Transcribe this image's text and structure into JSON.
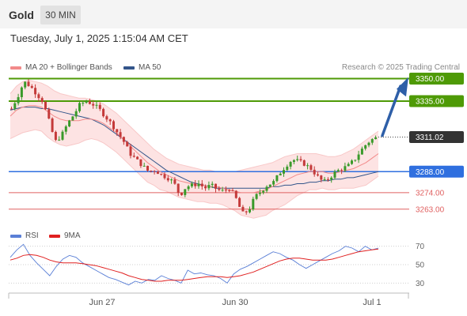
{
  "header": {
    "instrument": "Gold",
    "timeframe": "30 MIN",
    "datetime": "Tuesday, July 1, 2025 1:15:04 AM CET"
  },
  "legend": {
    "ma20": "MA 20 + Bollinger Bands",
    "ma50": "MA 50",
    "credit": "Research © 2025 Trading Central"
  },
  "rsi_legend": {
    "rsi": "RSI",
    "ma": "9MA"
  },
  "colors": {
    "ma20": "#f28a8a",
    "ma50": "#33558a",
    "resistance": "#4e9a06",
    "pivot": "#2f6fdf",
    "support": "#e06060",
    "bullish": "#3a9a2a",
    "bearish": "#c43a3a",
    "last": "#333333"
  },
  "chart_data": [
    {
      "type": "candlestick",
      "instrument": "Gold",
      "timeframe": "30 MIN",
      "x_ticks": [
        "Jun 27",
        "Jun 30",
        "Jul 1"
      ],
      "ylim": [
        3255,
        3355
      ],
      "levels": [
        {
          "value": "3350.00",
          "kind": "resistance"
        },
        {
          "value": "3335.00",
          "kind": "resistance"
        },
        {
          "value": "3311.02",
          "kind": "last"
        },
        {
          "value": "3288.00",
          "kind": "pivot"
        },
        {
          "value": "3274.00",
          "kind": "support"
        },
        {
          "value": "3263.00",
          "kind": "support"
        }
      ],
      "close_path": [
        3330,
        3338,
        3348,
        3345,
        3340,
        3335,
        3322,
        3308,
        3312,
        3320,
        3326,
        3333,
        3335,
        3333,
        3330,
        3325,
        3320,
        3314,
        3308,
        3300,
        3296,
        3292,
        3288,
        3289,
        3286,
        3284,
        3281,
        3272,
        3278,
        3279,
        3280,
        3277,
        3279,
        3276,
        3275,
        3277,
        3270,
        3260,
        3262,
        3271,
        3275,
        3279,
        3281,
        3287,
        3292,
        3296,
        3295,
        3293,
        3290,
        3285,
        3281,
        3284,
        3288,
        3290,
        3292,
        3296,
        3302,
        3307,
        3310,
        3311
      ],
      "ma20": [
        3325,
        3329,
        3331,
        3332,
        3332,
        3331,
        3328,
        3325,
        3323,
        3322,
        3322,
        3322,
        3323,
        3323,
        3322,
        3320,
        3317,
        3314,
        3310,
        3306,
        3302,
        3298,
        3294,
        3291,
        3288,
        3286,
        3284,
        3282,
        3281,
        3280,
        3279,
        3279,
        3278,
        3278,
        3277,
        3276,
        3275,
        3274,
        3274,
        3274,
        3275,
        3276,
        3278,
        3280,
        3282,
        3284,
        3286,
        3287,
        3288,
        3288,
        3288,
        3287,
        3287,
        3288,
        3289,
        3290,
        3292,
        3294,
        3297,
        3300
      ],
      "ma50": [
        3329,
        3330,
        3331,
        3331,
        3331,
        3330,
        3330,
        3329,
        3328,
        3327,
        3326,
        3325,
        3324,
        3323,
        3321,
        3319,
        3316,
        3313,
        3310,
        3307,
        3304,
        3301,
        3298,
        3295,
        3292,
        3289,
        3287,
        3285,
        3283,
        3281,
        3280,
        3279,
        3278,
        3277,
        3277,
        3277,
        3277,
        3277,
        3277,
        3277,
        3277,
        3277,
        3278,
        3278,
        3279,
        3279,
        3280,
        3280,
        3281,
        3281,
        3282,
        3282,
        3283,
        3283,
        3284,
        3284,
        3285,
        3286,
        3287,
        3288
      ],
      "bb_upper": [
        3340,
        3345,
        3348,
        3349,
        3348,
        3347,
        3345,
        3342,
        3340,
        3339,
        3338,
        3337,
        3337,
        3336,
        3335,
        3333,
        3330,
        3327,
        3323,
        3319,
        3315,
        3311,
        3307,
        3303,
        3300,
        3297,
        3295,
        3293,
        3292,
        3291,
        3290,
        3289,
        3289,
        3288,
        3288,
        3288,
        3288,
        3289,
        3290,
        3291,
        3292,
        3293,
        3294,
        3296,
        3298,
        3299,
        3300,
        3300,
        3300,
        3300,
        3299,
        3298,
        3298,
        3299,
        3301,
        3303,
        3306,
        3309,
        3312,
        3315
      ],
      "bb_lower": [
        3310,
        3312,
        3314,
        3315,
        3316,
        3315,
        3311,
        3308,
        3306,
        3305,
        3306,
        3307,
        3309,
        3310,
        3309,
        3307,
        3304,
        3301,
        3297,
        3293,
        3289,
        3285,
        3281,
        3279,
        3276,
        3275,
        3273,
        3271,
        3270,
        3269,
        3268,
        3268,
        3267,
        3267,
        3266,
        3264,
        3262,
        3259,
        3258,
        3257,
        3258,
        3259,
        3262,
        3264,
        3266,
        3269,
        3272,
        3274,
        3276,
        3276,
        3277,
        3276,
        3276,
        3277,
        3277,
        3277,
        3278,
        3279,
        3282,
        3285
      ]
    },
    {
      "type": "line",
      "name": "RSI",
      "y_ticks": [
        70,
        50,
        30
      ],
      "ylim": [
        20,
        80
      ],
      "rsi": [
        58,
        66,
        72,
        60,
        52,
        45,
        38,
        48,
        56,
        60,
        58,
        52,
        48,
        44,
        40,
        36,
        34,
        31,
        28,
        32,
        30,
        34,
        33,
        38,
        35,
        33,
        30,
        44,
        40,
        41,
        39,
        38,
        35,
        30,
        40,
        45,
        48,
        52,
        56,
        60,
        64,
        62,
        58,
        55,
        50,
        46,
        50,
        54,
        58,
        62,
        65,
        70,
        68,
        64,
        70,
        66,
        68
      ],
      "ma9": [
        55,
        57,
        60,
        61,
        60,
        58,
        55,
        53,
        52,
        52,
        52,
        51,
        50,
        49,
        47,
        45,
        43,
        41,
        38,
        36,
        34,
        33,
        32,
        32,
        33,
        33,
        33,
        34,
        35,
        36,
        37,
        37,
        37,
        36,
        37,
        38,
        40,
        42,
        45,
        48,
        51,
        54,
        56,
        57,
        57,
        56,
        55,
        55,
        55,
        56,
        58,
        60,
        62,
        64,
        65,
        66,
        67
      ]
    }
  ]
}
